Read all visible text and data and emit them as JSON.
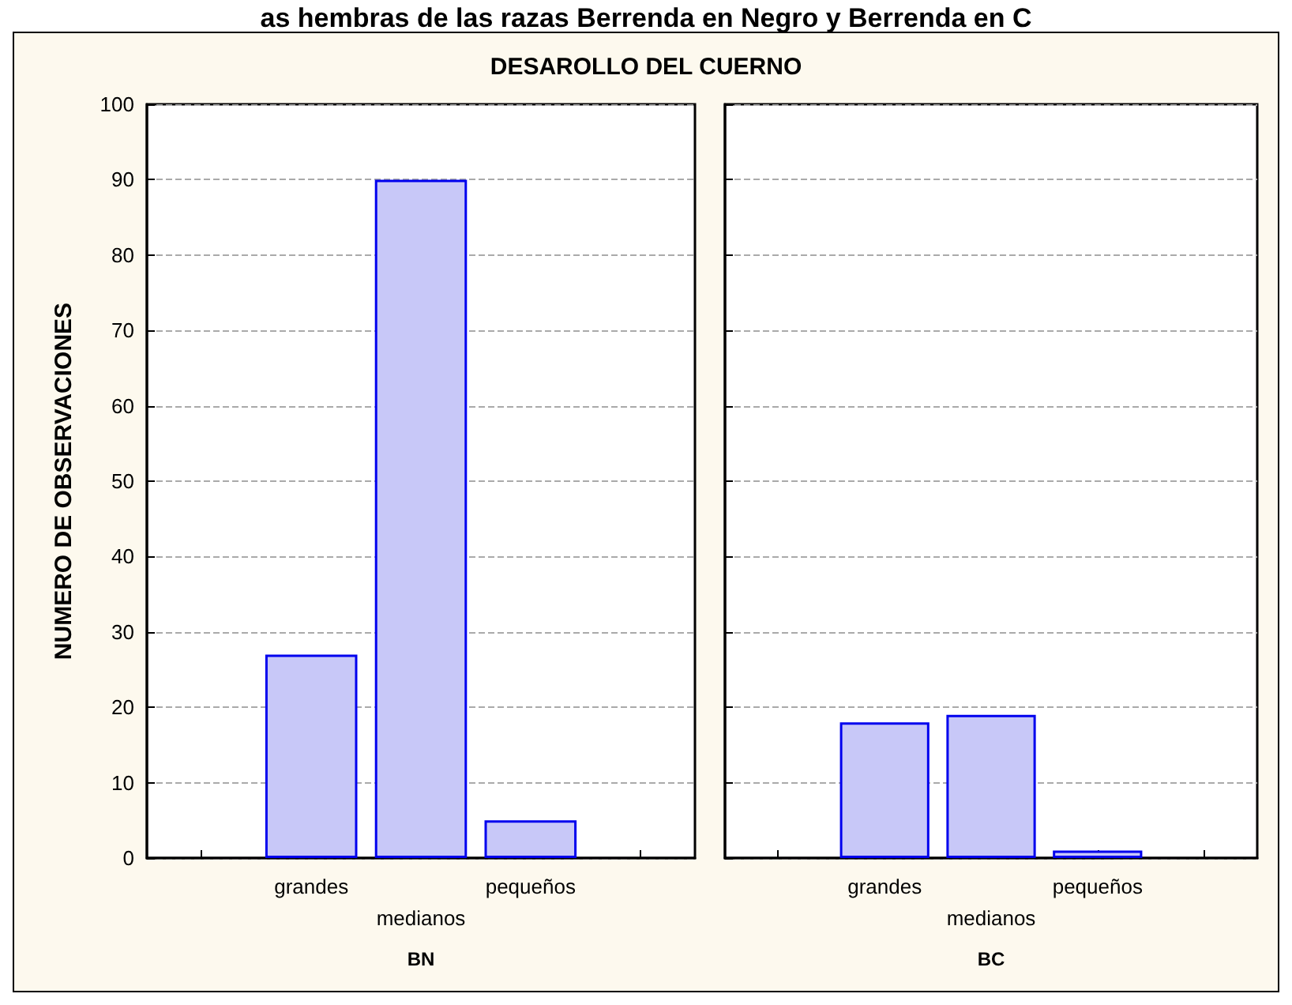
{
  "chart_data": [
    {
      "type": "bar",
      "title": "DESAROLLO DEL CUERNO",
      "annotations": [
        "as hembras de las razas Berrenda en Negro y Berrenda en C"
      ],
      "xlabel": "BN",
      "ylabel": "NUMERO DE OBSERVACIONES",
      "categories": [
        null,
        "grandes",
        "medianos",
        "pequeños",
        null
      ],
      "values": [
        null,
        27,
        90,
        5,
        null
      ],
      "color": "#c8c8f8",
      "ylim": [
        0,
        100
      ],
      "yticks": [
        0,
        10,
        20,
        30,
        40,
        50,
        60,
        70,
        80,
        90,
        100
      ],
      "grid": "y"
    },
    {
      "type": "bar",
      "xlabel": "BC",
      "categories": [
        null,
        "grandes",
        "medianos",
        "pequeños",
        null
      ],
      "values": [
        null,
        18,
        19,
        1,
        null
      ],
      "color": "#c8c8f8",
      "ylim": [
        0,
        100
      ],
      "yticks": [
        0,
        10,
        20,
        30,
        40,
        50,
        60,
        70,
        80,
        90,
        100
      ],
      "grid": "y",
      "tick_labels": "x"
    }
  ]
}
